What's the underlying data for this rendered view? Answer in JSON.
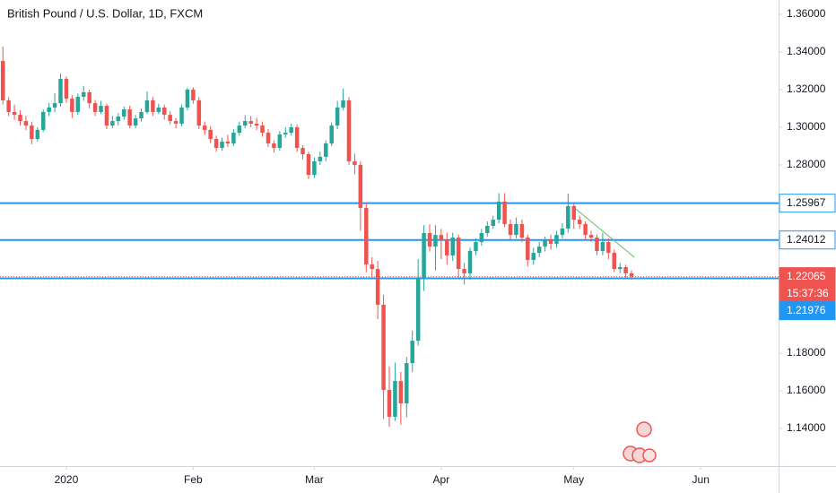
{
  "chart_data": {
    "type": "candlestick",
    "title": "British Pound / U.S. Dollar, 1D, FXCM",
    "up_color": "#26a69a",
    "down_color": "#ef5350",
    "open": [
      1.3352,
      1.3143,
      1.3081,
      1.3066,
      1.3033,
      1.3009,
      1.2938,
      1.2986,
      1.3081,
      1.3105,
      1.3128,
      1.3257,
      1.3152,
      1.3081,
      1.3162,
      1.3186,
      1.3128,
      1.3081,
      1.3114,
      1.3009,
      1.3033,
      1.3057,
      1.3095,
      1.3009,
      1.3047,
      1.3081,
      1.3143,
      1.3081,
      1.3105,
      1.3066,
      1.3033,
      1.3019,
      1.3105,
      1.32,
      1.3143,
      1.3009,
      1.2986,
      1.2938,
      1.289,
      1.2924,
      1.2914,
      1.2971,
      1.3009,
      1.3033,
      1.3019,
      1.3009,
      1.2971,
      1.2914,
      1.289,
      1.2962,
      1.2971,
      1.3,
      1.289,
      1.2857,
      1.2747,
      1.2819,
      1.2843,
      1.2914,
      1.3009,
      1.3105,
      1.3143,
      1.2819,
      1.28,
      1.2571,
      1.2271,
      1.2247,
      1.2057,
      1.1605,
      1.1462,
      1.1652,
      1.1533,
      1.1747,
      1.1866,
      1.22,
      1.2438,
      1.2366,
      1.2428,
      1.24,
      1.2319,
      1.2414,
      1.2247,
      1.2224,
      1.2343,
      1.239,
      1.2438,
      1.2476,
      1.2509,
      1.2605,
      1.2486,
      1.2428,
      1.2486,
      1.2414,
      1.2295,
      1.2333,
      1.2366,
      1.24,
      1.2381,
      1.2428,
      1.2462,
      1.2581,
      1.2509,
      1.2486,
      1.2428,
      1.2414,
      1.2343,
      1.239,
      1.2333,
      1.2247,
      1.2257,
      1.2224
    ],
    "high": [
      1.3428,
      1.316,
      1.312,
      1.309,
      1.306,
      1.303,
      1.3,
      1.3095,
      1.313,
      1.318,
      1.3285,
      1.327,
      1.317,
      1.318,
      1.322,
      1.32,
      1.3145,
      1.314,
      1.3125,
      1.306,
      1.3075,
      1.311,
      1.3115,
      1.3065,
      1.31,
      1.319,
      1.316,
      1.3125,
      1.312,
      1.3085,
      1.305,
      1.312,
      1.321,
      1.3212,
      1.316,
      1.303,
      1.3005,
      1.2955,
      1.2945,
      1.296,
      1.299,
      1.303,
      1.3065,
      1.306,
      1.305,
      1.303,
      1.299,
      1.293,
      1.298,
      1.3,
      1.302,
      1.3015,
      1.2905,
      1.287,
      1.284,
      1.287,
      1.293,
      1.3025,
      1.314,
      1.3205,
      1.316,
      1.286,
      1.282,
      1.26,
      1.231,
      1.229,
      1.211,
      1.173,
      1.175,
      1.17,
      1.178,
      1.192,
      1.23,
      1.248,
      1.2485,
      1.248,
      1.246,
      1.244,
      1.244,
      1.243,
      1.228,
      1.236,
      1.241,
      1.246,
      1.25,
      1.253,
      1.265,
      1.265,
      1.251,
      1.252,
      1.251,
      1.243,
      1.236,
      1.239,
      1.242,
      1.243,
      1.245,
      1.249,
      1.2647,
      1.26,
      1.253,
      1.25,
      1.245,
      1.243,
      1.244,
      1.241,
      1.235,
      1.228,
      1.227,
      1.224
    ],
    "low": [
      1.312,
      1.306,
      1.304,
      1.301,
      1.2985,
      1.291,
      1.2925,
      1.2975,
      1.306,
      1.308,
      1.311,
      1.313,
      1.305,
      1.3065,
      1.314,
      1.31,
      1.306,
      1.307,
      1.299,
      1.2995,
      1.301,
      1.304,
      1.2995,
      1.2995,
      1.303,
      1.307,
      1.306,
      1.307,
      1.304,
      1.3015,
      1.2995,
      1.3005,
      1.309,
      1.3125,
      1.299,
      1.296,
      1.2915,
      1.287,
      1.2875,
      1.2895,
      1.29,
      1.2955,
      1.2995,
      1.3,
      1.2985,
      1.295,
      1.2895,
      1.2865,
      1.2875,
      1.2945,
      1.2955,
      1.287,
      1.283,
      1.2725,
      1.273,
      1.28,
      1.282,
      1.29,
      1.299,
      1.309,
      1.28,
      1.275,
      1.245,
      1.223,
      1.22,
      1.198,
      1.145,
      1.141,
      1.144,
      1.142,
      1.146,
      1.17,
      1.184,
      1.213,
      1.234,
      1.224,
      1.23,
      1.227,
      1.229,
      1.22,
      1.2165,
      1.219,
      1.232,
      1.237,
      1.242,
      1.246,
      1.249,
      1.247,
      1.24,
      1.241,
      1.239,
      1.226,
      1.227,
      1.231,
      1.234,
      1.235,
      1.236,
      1.241,
      1.244,
      1.246,
      1.246,
      1.24,
      1.239,
      1.232,
      1.232,
      1.23,
      1.223,
      1.2225,
      1.22,
      1.219
    ],
    "close": [
      1.3143,
      1.3081,
      1.3066,
      1.3033,
      1.3009,
      1.2938,
      1.2986,
      1.3081,
      1.3105,
      1.3128,
      1.3257,
      1.3152,
      1.3081,
      1.3162,
      1.3186,
      1.3128,
      1.3081,
      1.3114,
      1.3009,
      1.3033,
      1.3057,
      1.3095,
      1.3009,
      1.3047,
      1.3081,
      1.3143,
      1.3081,
      1.3105,
      1.3066,
      1.3033,
      1.3019,
      1.3105,
      1.32,
      1.3143,
      1.3009,
      1.2986,
      1.2938,
      1.289,
      1.2924,
      1.2914,
      1.2971,
      1.3009,
      1.3033,
      1.3019,
      1.3009,
      1.2971,
      1.2914,
      1.289,
      1.2962,
      1.2971,
      1.3,
      1.289,
      1.2857,
      1.2747,
      1.2819,
      1.2843,
      1.2914,
      1.3009,
      1.3105,
      1.3143,
      1.2819,
      1.28,
      1.2571,
      1.2271,
      1.2247,
      1.2057,
      1.1605,
      1.1462,
      1.1652,
      1.1533,
      1.1747,
      1.1866,
      1.22,
      1.2438,
      1.2366,
      1.2428,
      1.24,
      1.2319,
      1.2414,
      1.2247,
      1.2224,
      1.2343,
      1.239,
      1.2438,
      1.2476,
      1.2509,
      1.2605,
      1.2486,
      1.2428,
      1.2486,
      1.2414,
      1.2295,
      1.2333,
      1.2366,
      1.24,
      1.2381,
      1.2428,
      1.2462,
      1.2581,
      1.2509,
      1.2486,
      1.2428,
      1.2414,
      1.2343,
      1.239,
      1.2333,
      1.2247,
      1.2257,
      1.2224,
      1.2207
    ],
    "xlim": [
      -0.5,
      134.5
    ],
    "xticks": [
      {
        "value": 11,
        "label": "2020"
      },
      {
        "value": 33,
        "label": "Feb"
      },
      {
        "value": 54,
        "label": "Mar"
      },
      {
        "value": 76,
        "label": "Apr"
      },
      {
        "value": 99,
        "label": "May"
      },
      {
        "value": 121,
        "label": "Jun"
      }
    ],
    "ylim": [
      1.12,
      1.3676
    ],
    "yticks": [
      {
        "value": 1.36,
        "label": "1.36000"
      },
      {
        "value": 1.34,
        "label": "1.34000"
      },
      {
        "value": 1.32,
        "label": "1.32000"
      },
      {
        "value": 1.3,
        "label": "1.30000"
      },
      {
        "value": 1.28,
        "label": "1.28000"
      },
      {
        "value": 1.18,
        "label": "1.18000"
      },
      {
        "value": 1.16,
        "label": "1.16000"
      },
      {
        "value": 1.14,
        "label": "1.14000"
      }
    ],
    "grid": false,
    "levels": [
      1.25967,
      1.24012,
      1.21976
    ],
    "level_color": "#2196f3",
    "last_price": 1.22065,
    "countdown": "15:37:36",
    "trendline": {
      "x": [
        99.3,
        109.5
      ],
      "y": [
        1.2567,
        1.2309
      ],
      "color": "#66bb6a"
    }
  }
}
